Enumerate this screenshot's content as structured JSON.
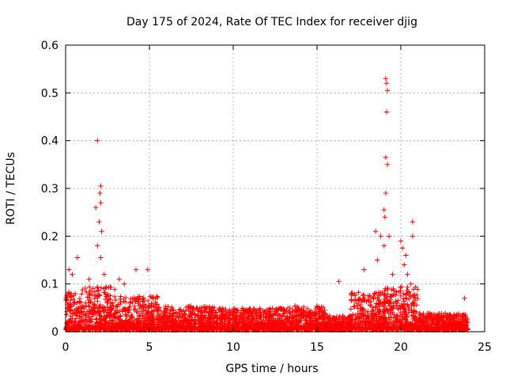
{
  "chart_data": {
    "type": "scatter",
    "title": "Day 175 of 2024, Rate Of TEC Index for receiver djig",
    "xlabel": "GPS time / hours",
    "ylabel": "ROTI / TECUs",
    "xlim": [
      0,
      25
    ],
    "ylim": [
      0,
      0.6
    ],
    "xticks": [
      0,
      5,
      10,
      15,
      20,
      25
    ],
    "yticks": [
      0,
      0.1,
      0.2,
      0.3,
      0.4,
      0.5,
      0.6
    ],
    "xtick_labels": [
      "0",
      "5",
      "10",
      "15",
      "20",
      "25"
    ],
    "ytick_labels": [
      "0",
      "0.1",
      "0.2",
      "0.3",
      "0.4",
      "0.5",
      "0.6"
    ],
    "grid": true,
    "marker": "+",
    "color": "#ff0000",
    "notable_points": [
      {
        "x": 0.2,
        "y": 0.13
      },
      {
        "x": 0.4,
        "y": 0.12
      },
      {
        "x": 0.7,
        "y": 0.155
      },
      {
        "x": 1.4,
        "y": 0.11
      },
      {
        "x": 1.8,
        "y": 0.26
      },
      {
        "x": 1.9,
        "y": 0.4
      },
      {
        "x": 1.9,
        "y": 0.18
      },
      {
        "x": 2.0,
        "y": 0.23
      },
      {
        "x": 2.05,
        "y": 0.29
      },
      {
        "x": 2.1,
        "y": 0.305
      },
      {
        "x": 2.1,
        "y": 0.27
      },
      {
        "x": 2.15,
        "y": 0.21
      },
      {
        "x": 2.1,
        "y": 0.155
      },
      {
        "x": 2.3,
        "y": 0.12
      },
      {
        "x": 3.2,
        "y": 0.11
      },
      {
        "x": 3.5,
        "y": 0.1
      },
      {
        "x": 4.2,
        "y": 0.13
      },
      {
        "x": 4.9,
        "y": 0.13
      },
      {
        "x": 16.3,
        "y": 0.105
      },
      {
        "x": 17.8,
        "y": 0.13
      },
      {
        "x": 18.5,
        "y": 0.21
      },
      {
        "x": 18.6,
        "y": 0.15
      },
      {
        "x": 18.8,
        "y": 0.2
      },
      {
        "x": 19.1,
        "y": 0.53
      },
      {
        "x": 19.15,
        "y": 0.52
      },
      {
        "x": 19.2,
        "y": 0.505
      },
      {
        "x": 19.15,
        "y": 0.46
      },
      {
        "x": 19.1,
        "y": 0.365
      },
      {
        "x": 19.2,
        "y": 0.35
      },
      {
        "x": 19.1,
        "y": 0.29
      },
      {
        "x": 19.0,
        "y": 0.255
      },
      {
        "x": 19.05,
        "y": 0.24
      },
      {
        "x": 19.0,
        "y": 0.18
      },
      {
        "x": 19.3,
        "y": 0.2
      },
      {
        "x": 19.5,
        "y": 0.12
      },
      {
        "x": 20.0,
        "y": 0.19
      },
      {
        "x": 20.1,
        "y": 0.175
      },
      {
        "x": 20.2,
        "y": 0.14
      },
      {
        "x": 20.3,
        "y": 0.16
      },
      {
        "x": 20.4,
        "y": 0.12
      },
      {
        "x": 20.7,
        "y": 0.23
      },
      {
        "x": 20.7,
        "y": 0.2
      },
      {
        "x": 20.6,
        "y": 0.1
      },
      {
        "x": 23.8,
        "y": 0.07
      }
    ],
    "background_segments": [
      {
        "x0": 0,
        "x1": 1.0,
        "ymax": 0.08
      },
      {
        "x0": 1.0,
        "x1": 3.0,
        "ymax": 0.09
      },
      {
        "x0": 3.0,
        "x1": 5.5,
        "ymax": 0.07
      },
      {
        "x0": 5.5,
        "x1": 9.0,
        "ymax": 0.05
      },
      {
        "x0": 9.0,
        "x1": 13.0,
        "ymax": 0.045
      },
      {
        "x0": 13.0,
        "x1": 15.5,
        "ymax": 0.05
      },
      {
        "x0": 15.5,
        "x1": 17.0,
        "ymax": 0.03
      },
      {
        "x0": 17.0,
        "x1": 19.0,
        "ymax": 0.08
      },
      {
        "x0": 19.0,
        "x1": 21.0,
        "ymax": 0.09
      },
      {
        "x0": 21.0,
        "x1": 24.0,
        "ymax": 0.035
      }
    ]
  }
}
